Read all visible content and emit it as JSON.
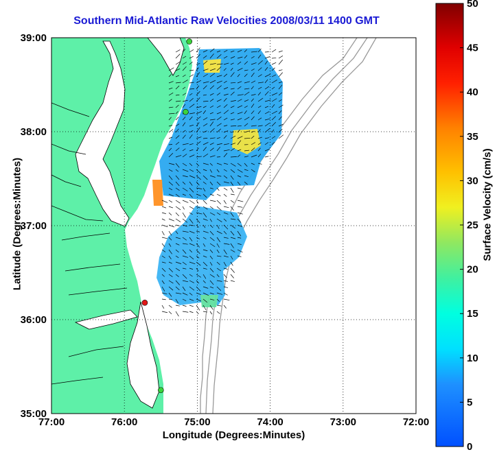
{
  "chart_data": {
    "type": "heatmap",
    "title": "Southern Mid-Atlantic Raw Velocities 2008/03/11 1400 GMT",
    "xlabel": "Longitude (Degrees:Minutes)",
    "ylabel": "Latitude (Degrees:Minutes)",
    "x_ticks": [
      "77:00",
      "76:00",
      "75:00",
      "74:00",
      "73:00",
      "72:00"
    ],
    "y_ticks": [
      "39:00",
      "38:00",
      "37:00",
      "36:00",
      "35:00"
    ],
    "xlim": [
      -77,
      -72
    ],
    "ylim": [
      35,
      39
    ],
    "grid": true,
    "colorbar": {
      "label": "Surface Velocity (cm/s)",
      "ticks": [
        "50",
        "45",
        "40",
        "35",
        "30",
        "25",
        "20",
        "15",
        "10",
        "5",
        "0"
      ],
      "range": [
        0,
        50
      ]
    },
    "colors": {
      "land": "#5ef0a8",
      "coastline": "#000000",
      "bathymetry": "#999999",
      "title": "#1a1ad4"
    },
    "stations": [
      {
        "lon": -75.11,
        "lat": 38.96,
        "color": "#3cd33c"
      },
      {
        "lon": -75.16,
        "lat": 38.21,
        "color": "#3cd33c"
      },
      {
        "lon": -75.72,
        "lat": 36.18,
        "color": "#e01818"
      },
      {
        "lon": -75.5,
        "lat": 35.25,
        "color": "#3cd33c"
      }
    ],
    "velocity_regions": [
      {
        "lon": -74.85,
        "lat": 38.5,
        "speed": 10
      },
      {
        "lon": -74.3,
        "lat": 38.3,
        "speed": 9
      },
      {
        "lon": -74.95,
        "lat": 38.0,
        "speed": 9
      },
      {
        "lon": -74.25,
        "lat": 37.88,
        "speed": 27
      },
      {
        "lon": -75.05,
        "lat": 37.6,
        "speed": 6
      },
      {
        "lon": -74.55,
        "lat": 37.55,
        "speed": 9
      },
      {
        "lon": -75.45,
        "lat": 37.35,
        "speed": 28
      },
      {
        "lon": -75.1,
        "lat": 37.25,
        "speed": 11
      },
      {
        "lon": -74.8,
        "lat": 36.9,
        "speed": 7
      },
      {
        "lon": -75.1,
        "lat": 36.6,
        "speed": 10
      },
      {
        "lon": -74.75,
        "lat": 36.45,
        "speed": 8
      },
      {
        "lon": -74.95,
        "lat": 38.82,
        "speed": 22
      }
    ]
  }
}
